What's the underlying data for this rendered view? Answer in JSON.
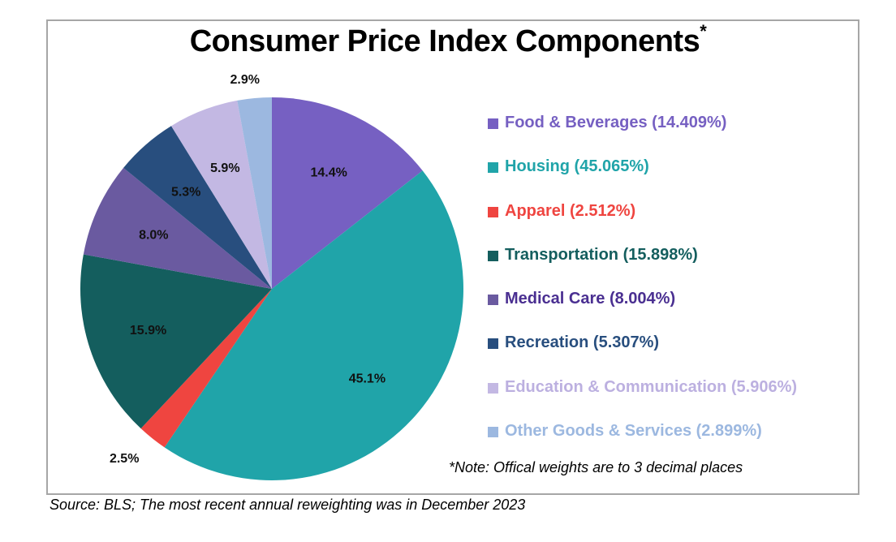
{
  "chart_data": {
    "type": "pie",
    "title": "Consumer Price Index Components",
    "title_marker": "*",
    "start_angle": "12 o'clock",
    "direction": "clockwise",
    "slices": [
      {
        "name": "Food & Beverages",
        "value": 14.409,
        "label": "14.4%",
        "legend": "Food & Beverages (14.409%)",
        "color": "#7660C2",
        "legend_color": "#7660C2",
        "label_placement": "inside"
      },
      {
        "name": "Housing",
        "value": 45.065,
        "label": "45.1%",
        "legend": "Housing (45.065%)",
        "color": "#20A4A9",
        "legend_color": "#20A4A9",
        "label_placement": "inside"
      },
      {
        "name": "Apparel",
        "value": 2.512,
        "label": "2.5%",
        "legend": "Apparel (2.512%)",
        "color": "#EF4540",
        "legend_color": "#EF4540",
        "label_placement": "outside"
      },
      {
        "name": "Transportation",
        "value": 15.898,
        "label": "15.9%",
        "legend": "Transportation (15.898%)",
        "color": "#145E5E",
        "legend_color": "#145E5E",
        "label_placement": "inside"
      },
      {
        "name": "Medical Care",
        "value": 8.004,
        "label": "8.0%",
        "legend": "Medical Care (8.004%)",
        "color": "#6A5AA0",
        "legend_color": "#4A2F91",
        "label_placement": "inside"
      },
      {
        "name": "Recreation",
        "value": 5.307,
        "label": "5.3%",
        "legend": "Recreation (5.307%)",
        "color": "#284E7E",
        "legend_color": "#284E7E",
        "label_placement": "inside"
      },
      {
        "name": "Education & Communication",
        "value": 5.906,
        "label": "5.9%",
        "legend": "Education & Communication (5.906%)",
        "color": "#C3B8E3",
        "legend_color": "#BCB0E0",
        "label_placement": "inside"
      },
      {
        "name": "Other Goods & Services",
        "value": 2.899,
        "label": "2.9%",
        "legend": "Other Goods & Services (2.899%)",
        "color": "#9CB8E0",
        "legend_color": "#9CB8E0",
        "label_placement": "outside"
      }
    ],
    "legend_position": "right"
  },
  "note": "*Note: Offical weights are to 3 decimal places",
  "source": "Source: BLS; The most recent annual reweighting was in December 2023"
}
